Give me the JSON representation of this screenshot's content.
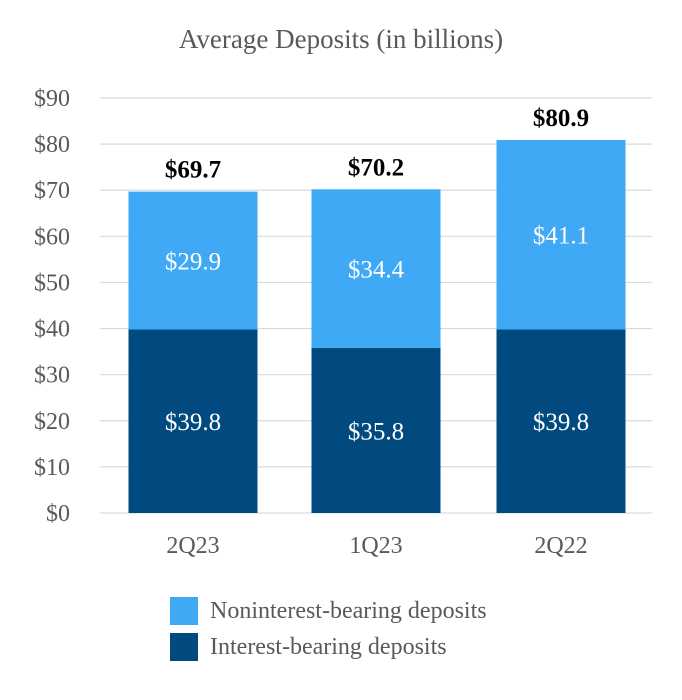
{
  "chart_data": {
    "type": "bar",
    "stacked": true,
    "title": "Average Deposits (in billions)",
    "categories": [
      "2Q23",
      "1Q23",
      "2Q22"
    ],
    "series": [
      {
        "name": "Interest-bearing deposits",
        "values": [
          39.8,
          35.8,
          39.8
        ],
        "labels": [
          "$39.8",
          "$35.8",
          "$39.8"
        ],
        "color": "#004a80"
      },
      {
        "name": "Noninterest-bearing deposits",
        "values": [
          29.9,
          34.4,
          41.1
        ],
        "labels": [
          "$29.9",
          "$34.4",
          "$41.1"
        ],
        "color": "#3fa9f5"
      }
    ],
    "totals": [
      69.7,
      70.2,
      80.9
    ],
    "total_labels": [
      "$69.7",
      "$70.2",
      "$80.9"
    ],
    "yticks": [
      "$0",
      "$10",
      "$20",
      "$30",
      "$40",
      "$50",
      "$60",
      "$70",
      "$80",
      "$90"
    ],
    "ylim": [
      0,
      90
    ],
    "grid": true,
    "legend_position": "bottom"
  },
  "legend": [
    {
      "label": "Noninterest-bearing deposits",
      "color": "#3fa9f5"
    },
    {
      "label": "Interest-bearing deposits",
      "color": "#004a80"
    }
  ]
}
